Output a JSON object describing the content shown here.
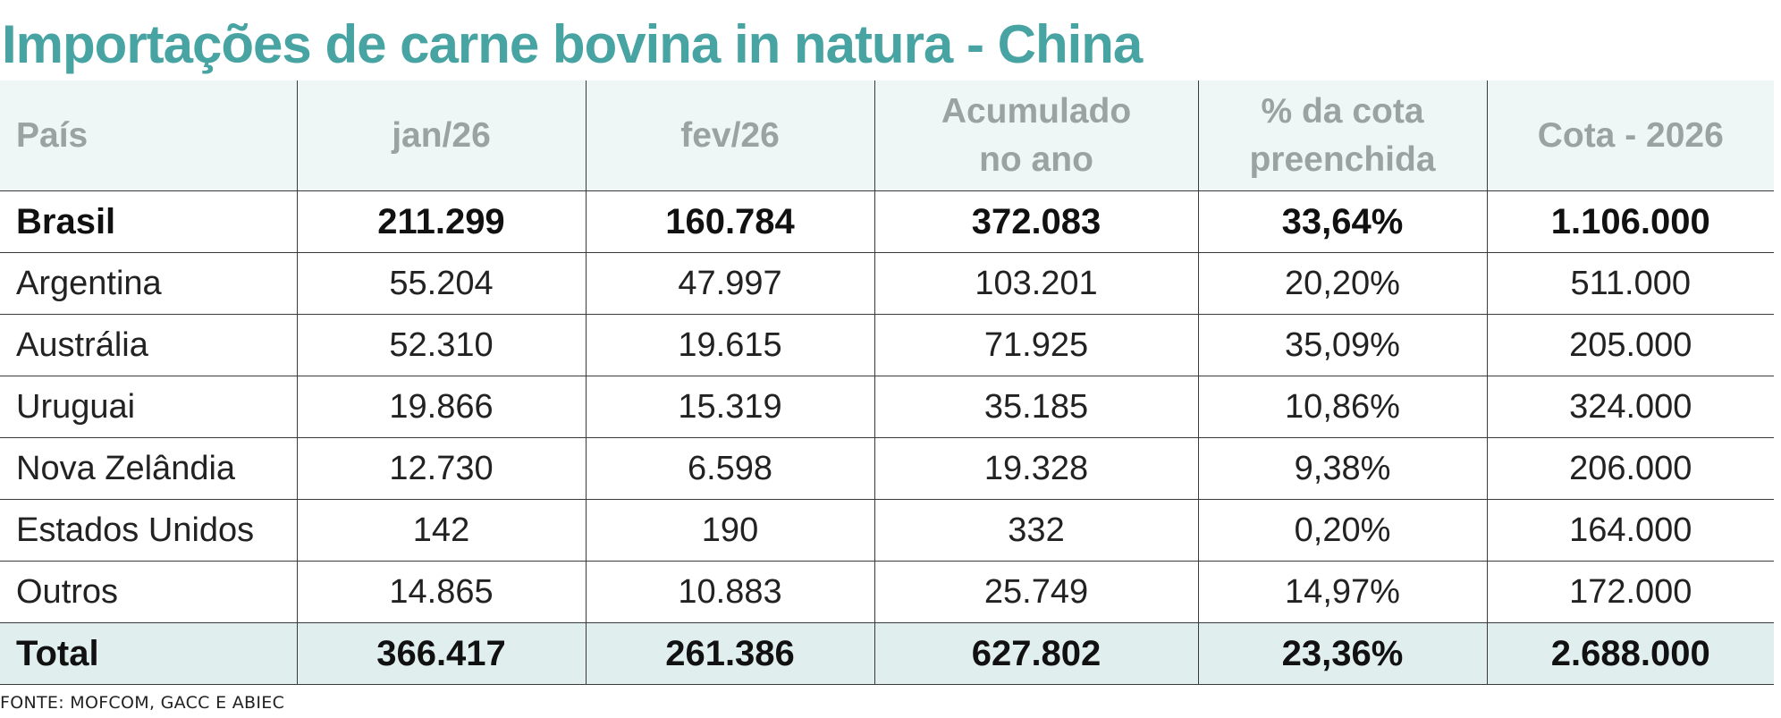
{
  "title": "Importações de carne bovina in natura - China",
  "table": {
    "headers": [
      "País",
      "jan/26",
      "fev/26",
      "Acumulado no ano",
      "% da cota preenchida",
      "Cota - 2026"
    ],
    "header_lines": {
      "acumulado": [
        "Acumulado",
        "no ano"
      ],
      "cota_preenchida": [
        "% da cota",
        "preenchida"
      ]
    },
    "rows": [
      {
        "pais": "Brasil",
        "jan": "211.299",
        "fev": "160.784",
        "acumulado": "372.083",
        "pct": "33,64%",
        "cota": "1.106.000"
      },
      {
        "pais": "Argentina",
        "jan": "55.204",
        "fev": "47.997",
        "acumulado": "103.201",
        "pct": "20,20%",
        "cota": "511.000"
      },
      {
        "pais": "Austrália",
        "jan": "52.310",
        "fev": "19.615",
        "acumulado": "71.925",
        "pct": "35,09%",
        "cota": "205.000"
      },
      {
        "pais": "Uruguai",
        "jan": "19.866",
        "fev": "15.319",
        "acumulado": "35.185",
        "pct": "10,86%",
        "cota": "324.000"
      },
      {
        "pais": "Nova Zelândia",
        "jan": "12.730",
        "fev": "6.598",
        "acumulado": "19.328",
        "pct": "9,38%",
        "cota": "206.000"
      },
      {
        "pais": "Estados Unidos",
        "jan": "142",
        "fev": "190",
        "acumulado": "332",
        "pct": "0,20%",
        "cota": "164.000"
      },
      {
        "pais": "Outros",
        "jan": "14.865",
        "fev": "10.883",
        "acumulado": "25.749",
        "pct": "14,97%",
        "cota": "172.000"
      }
    ],
    "total": {
      "pais": "Total",
      "jan": "366.417",
      "fev": "261.386",
      "acumulado": "627.802",
      "pct": "23,36%",
      "cota": "2.688.000"
    }
  },
  "source": "FONTE: MOFCOM, GACC E ABIEC",
  "colors": {
    "title": "#47a4a2",
    "header_bg": "#eff6f6",
    "header_text": "#9aa2a2",
    "total_bg": "#e0eeee",
    "grid": "#3a3a3a"
  }
}
